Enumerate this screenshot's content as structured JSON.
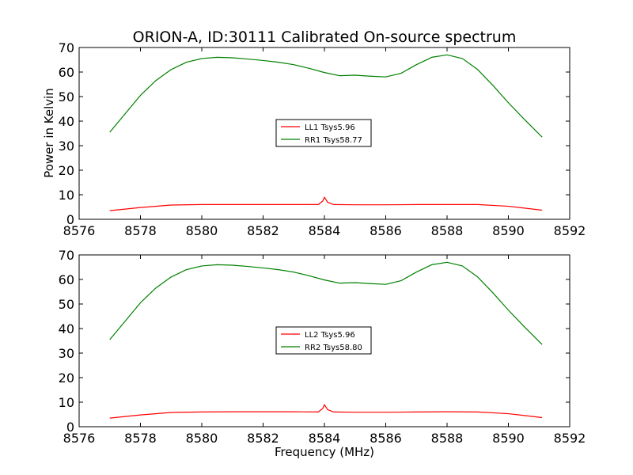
{
  "figure": {
    "title": "ORION-A, ID:30111 Calibrated On-source spectrum",
    "xlabel": "Frequency (MHz)",
    "ylabel": "Power in Kelvin"
  },
  "chart_data": [
    {
      "type": "line",
      "title": "ORION-A, ID:30111 Calibrated On-source spectrum",
      "xlabel": "",
      "ylabel": "Power in Kelvin",
      "xlim": [
        8576,
        8592
      ],
      "ylim": [
        0,
        70
      ],
      "x_ticks": [
        8576,
        8578,
        8580,
        8582,
        8584,
        8586,
        8588,
        8590,
        8592
      ],
      "y_ticks": [
        0,
        10,
        20,
        30,
        40,
        50,
        60,
        70
      ],
      "grid": false,
      "legend_position": "center",
      "series": [
        {
          "name": "LL1 Tsys5.96",
          "color": "#ff0000",
          "x": [
            8577.0,
            8578.0,
            8579.0,
            8580.0,
            8581.0,
            8582.0,
            8583.0,
            8583.8,
            8583.95,
            8584.0,
            8584.1,
            8584.3,
            8585.0,
            8586.0,
            8587.0,
            8588.0,
            8589.0,
            8590.0,
            8590.5,
            8591.1
          ],
          "y": [
            3.5,
            4.8,
            5.8,
            6.0,
            6.0,
            6.0,
            6.0,
            6.0,
            7.5,
            9.0,
            7.0,
            6.0,
            5.9,
            5.9,
            6.0,
            6.0,
            6.0,
            5.3,
            4.6,
            3.7
          ]
        },
        {
          "name": "RR1 Tsys58.77",
          "color": "#008000",
          "x": [
            8577.0,
            8577.5,
            8578.0,
            8578.5,
            8579.0,
            8579.5,
            8580.0,
            8580.5,
            8581.0,
            8581.5,
            8582.0,
            8582.5,
            8583.0,
            8583.5,
            8584.0,
            8584.5,
            8585.0,
            8585.5,
            8586.0,
            8586.5,
            8587.0,
            8587.5,
            8588.0,
            8588.5,
            8589.0,
            8589.5,
            8590.0,
            8590.5,
            8591.1
          ],
          "y": [
            35.5,
            43.0,
            50.5,
            56.5,
            61.0,
            64.0,
            65.5,
            66.0,
            65.8,
            65.3,
            64.7,
            64.0,
            63.0,
            61.5,
            59.8,
            58.5,
            58.7,
            58.3,
            58.0,
            59.5,
            63.0,
            66.0,
            67.0,
            65.5,
            61.0,
            54.5,
            47.5,
            41.0,
            33.5
          ]
        }
      ]
    },
    {
      "type": "line",
      "title": "",
      "xlabel": "Frequency (MHz)",
      "ylabel": "",
      "xlim": [
        8576,
        8592
      ],
      "ylim": [
        0,
        70
      ],
      "x_ticks": [
        8576,
        8578,
        8580,
        8582,
        8584,
        8586,
        8588,
        8590,
        8592
      ],
      "y_ticks": [
        0,
        10,
        20,
        30,
        40,
        50,
        60,
        70
      ],
      "grid": false,
      "legend_position": "center",
      "series": [
        {
          "name": "LL2 Tsys5.96",
          "color": "#ff0000",
          "x": [
            8577.0,
            8578.0,
            8579.0,
            8580.0,
            8581.0,
            8582.0,
            8583.0,
            8583.8,
            8583.95,
            8584.0,
            8584.1,
            8584.3,
            8585.0,
            8586.0,
            8587.0,
            8588.0,
            8589.0,
            8590.0,
            8590.5,
            8591.1
          ],
          "y": [
            3.5,
            4.8,
            5.8,
            6.0,
            6.1,
            6.1,
            6.1,
            6.0,
            7.5,
            9.0,
            7.0,
            6.0,
            5.9,
            5.9,
            6.0,
            6.1,
            6.0,
            5.3,
            4.6,
            3.7
          ]
        },
        {
          "name": "RR2 Tsys58.80",
          "color": "#008000",
          "x": [
            8577.0,
            8577.5,
            8578.0,
            8578.5,
            8579.0,
            8579.5,
            8580.0,
            8580.5,
            8581.0,
            8581.5,
            8582.0,
            8582.5,
            8583.0,
            8583.5,
            8584.0,
            8584.5,
            8585.0,
            8585.5,
            8586.0,
            8586.5,
            8587.0,
            8587.5,
            8588.0,
            8588.5,
            8589.0,
            8589.5,
            8590.0,
            8590.5,
            8591.1
          ],
          "y": [
            35.5,
            43.0,
            50.5,
            56.5,
            61.0,
            64.0,
            65.5,
            66.0,
            65.8,
            65.3,
            64.7,
            64.0,
            63.0,
            61.5,
            59.8,
            58.5,
            58.7,
            58.3,
            58.0,
            59.5,
            63.0,
            66.0,
            67.0,
            65.5,
            61.0,
            54.5,
            47.5,
            41.0,
            33.5
          ]
        }
      ]
    }
  ]
}
